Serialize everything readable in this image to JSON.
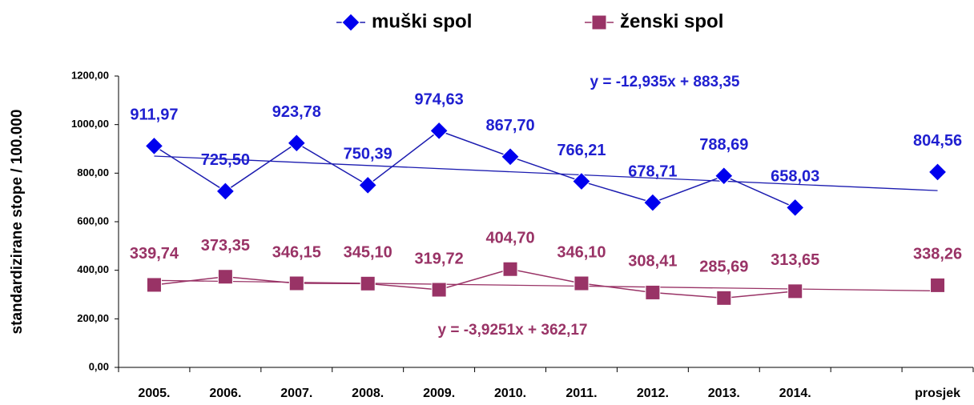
{
  "chart_data": {
    "type": "line",
    "y_label": "standardizirane stope / 100.000",
    "categories": [
      "2005.",
      "2006.",
      "2007.",
      "2008.",
      "2009.",
      "2010.",
      "2011.",
      "2012.",
      "2013.",
      "2014.",
      null,
      "prosjek"
    ],
    "series": [
      {
        "name": "muški spol",
        "color": "#0000ee",
        "line_color": "#1c1cb0",
        "marker": "diamond",
        "values": [
          911.97,
          725.5,
          923.78,
          750.39,
          974.63,
          867.7,
          766.21,
          678.71,
          788.69,
          658.03,
          null,
          804.56
        ],
        "value_labels": [
          "911,97",
          "725,50",
          "923,78",
          "750,39",
          "974,63",
          "867,70",
          "766,21",
          "678,71",
          "788,69",
          "658,03",
          null,
          "804,56"
        ],
        "trend": {
          "slope": -12.935,
          "intercept": 883.35,
          "label": "y = -12,935x + 883,35"
        }
      },
      {
        "name": "ženski spol",
        "color": "#993366",
        "line_color": "#993366",
        "marker": "square",
        "values": [
          339.74,
          373.35,
          346.15,
          345.1,
          319.72,
          404.7,
          346.1,
          308.41,
          285.69,
          313.65,
          null,
          338.26
        ],
        "value_labels": [
          "339,74",
          "373,35",
          "346,15",
          "345,10",
          "319,72",
          "404,70",
          "346,10",
          "308,41",
          "285,69",
          "313,65",
          null,
          "338,26"
        ],
        "trend": {
          "slope": -3.9251,
          "intercept": 362.17,
          "label": "y = -3,9251x + 362,17"
        }
      }
    ],
    "ylim": [
      0,
      1200
    ],
    "yticks": [
      {
        "value": 0,
        "label": "0,00"
      },
      {
        "value": 200,
        "label": "200,00"
      },
      {
        "value": 400,
        "label": "400,00"
      },
      {
        "value": 600,
        "label": "600,00"
      },
      {
        "value": 800,
        "label": "800,00"
      },
      {
        "value": 1000,
        "label": "1000,00"
      },
      {
        "value": 1200,
        "label": "1200,00"
      }
    ],
    "legend": "top"
  }
}
